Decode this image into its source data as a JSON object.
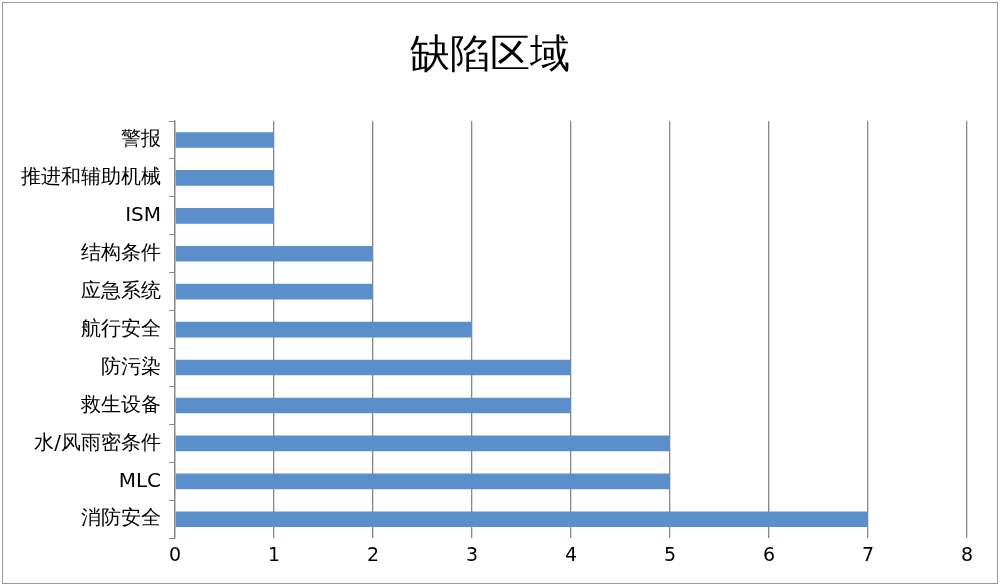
{
  "chart_data": {
    "type": "bar",
    "title": "缺陷区域",
    "orientation": "horizontal",
    "categories": [
      "警报",
      "推进和辅助机械",
      "ISM",
      "结构条件",
      "应急系统",
      "航行安全",
      "防污染",
      "救生设备",
      "水/风雨密条件",
      "MLC",
      "消防安全"
    ],
    "values": [
      1,
      1,
      1,
      2,
      2,
      3,
      4,
      4,
      5,
      5,
      7
    ],
    "color": "#5b8fcb",
    "xlim": [
      0,
      8
    ],
    "xticks": [
      0,
      1,
      2,
      3,
      4,
      5,
      6,
      7,
      8
    ],
    "grid": "x",
    "legend": false
  }
}
